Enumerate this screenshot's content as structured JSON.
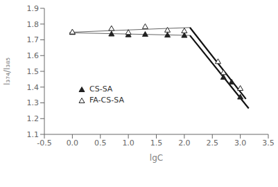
{
  "chart_data": {
    "type": "scatter",
    "xlabel": "lgC",
    "ylabel": "I₃₇₄/I₃₈₅",
    "xlim": [
      -0.5,
      3.5
    ],
    "ylim": [
      1.1,
      1.9
    ],
    "xticks": [
      -0.5,
      {
        "value": 0,
        "label": "0.0"
      },
      0.5,
      {
        "value": 1.0,
        "label": "1.0"
      },
      1.5,
      {
        "value": 2.0,
        "label": "2.0"
      },
      2.5,
      {
        "value": 3.0,
        "label": "3.0"
      },
      3.5
    ],
    "yticks": [
      1.1,
      1.2,
      1.3,
      1.4,
      1.5,
      1.6,
      1.7,
      1.8,
      1.9
    ],
    "legend": "center left",
    "series": [
      {
        "type": "line",
        "line_style": "thin",
        "color": "#666666",
        "x": [
          -0.05,
          2.1
        ],
        "values": [
          1.745,
          1.728
        ]
      },
      {
        "type": "line",
        "line_style": "thick",
        "color": "#111111",
        "x": [
          2.1,
          3.15
        ],
        "values": [
          1.728,
          1.265
        ]
      },
      {
        "type": "line",
        "line_style": "thin",
        "color": "#666666",
        "x": [
          -0.05,
          2.1
        ],
        "values": [
          1.748,
          1.778
        ]
      },
      {
        "type": "line",
        "line_style": "thick",
        "color": "#111111",
        "x": [
          2.1,
          3.1
        ],
        "values": [
          1.778,
          1.325
        ]
      },
      {
        "name": "CS-SA",
        "type": "scatter",
        "marker": "triangle",
        "color": "#222222",
        "x": [
          0,
          0.699,
          1.0,
          1.301,
          1.699,
          2.0,
          2.699,
          2.845,
          3.0
        ],
        "values": [
          1.745,
          1.735,
          1.73,
          1.733,
          1.728,
          1.726,
          1.46,
          1.43,
          1.335
        ]
      },
      {
        "name": "FA-CS-SA",
        "type": "scatter",
        "marker": "triangle-open",
        "color": "#222222",
        "x": [
          0,
          0.699,
          1.0,
          1.301,
          1.699,
          2.0,
          2.602,
          2.699,
          3.0
        ],
        "values": [
          1.748,
          1.77,
          1.745,
          1.782,
          1.76,
          1.755,
          1.56,
          1.49,
          1.39
        ]
      }
    ]
  }
}
